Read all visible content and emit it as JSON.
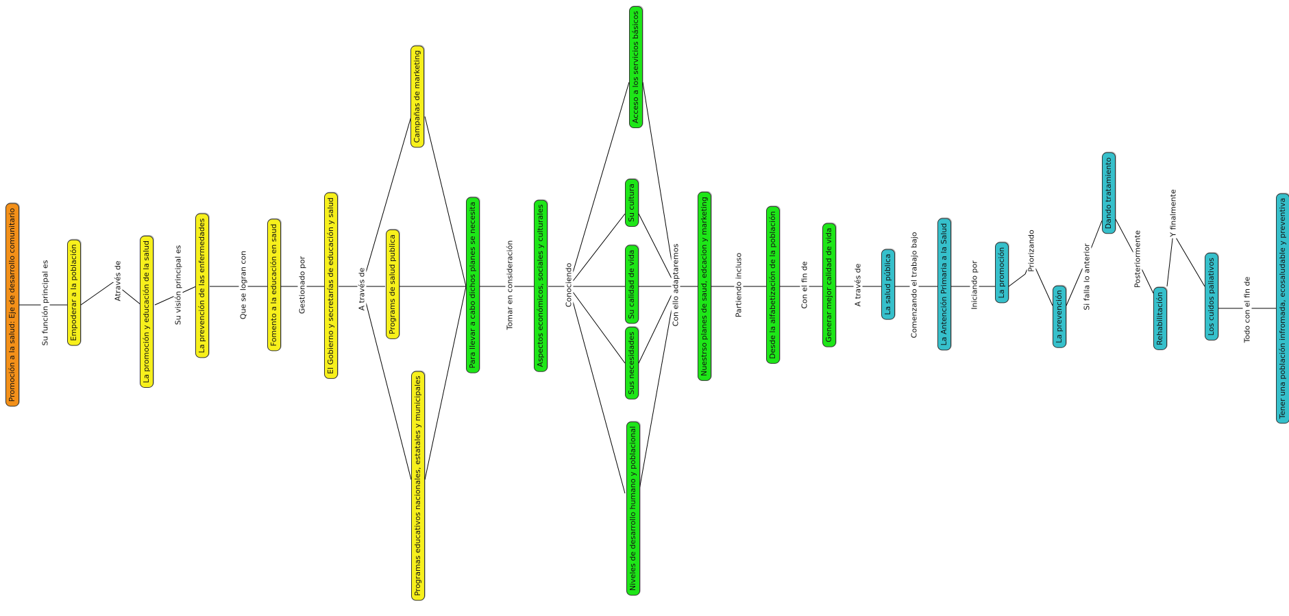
{
  "colors": {
    "orange": "#f39019",
    "yellow": "#f7f01c",
    "green": "#1ee618",
    "teal": "#36c0cb"
  },
  "nodes": {
    "root": "Promoción a la salud: Eje de desarrollo comunitario",
    "empoderar": "Empoderar a la población",
    "promocion_educacion": "La promoción y educación de la salud",
    "prevencion_enf": "La prevención de las enfermedades",
    "fomento": "Fomento a la educación en saud",
    "gobierno": "El Gobierno y secretarías de educación y salud",
    "campanas": "Campañas de marketing",
    "programas_salud": "Programs de salud publica",
    "programas_edu": "Programas educativos nacionales, estatales y municipales",
    "para_llevar": "Para llevar a cabo dichos planes se necesita",
    "aspectos": "Aspectos económicos, sociales y culturales",
    "acceso": "Acceso a los servicios básicos",
    "su_cultura": "Su cultura",
    "su_calidad": "Su calidad de vida",
    "sus_necesidades": "Sus necesidades",
    "niveles": "Niveles de desarrollo humano y poblacional",
    "nuestros_planes": "Nuestrso planes de saud, edcacion y marketing",
    "alfabetizacion": "Desde la alfabetización de la población",
    "generar": "Generar mejor calidad de vida",
    "salud_publica": "La salud pública",
    "atencion_primaria": "La Antención Primaria a la Salud",
    "la_promocion": "La promoción",
    "la_prevencion": "La prevención",
    "dando_tratamiento": "Dando tratamiento",
    "rehabilitacion": "Rehabilitación",
    "cuidados": "Los cuidos paliativos",
    "final": "Tener una población infromada, ecosaludable y preventiva"
  },
  "links": {
    "su_funcion": "Su función principal es",
    "atraves_de": "Através de",
    "su_vision": "Su visión principal es",
    "que_se_logran": "Que se logran con",
    "gestionado_por": "Gestionado por",
    "a_traves_de_1": "A través de",
    "tomar": "Tomar en consideración",
    "conociendo": "Conociendo",
    "con_ello": "Con ello adaptaremos",
    "partiendo": "Partiendo incluso",
    "con_el_fin": "Con el fin de",
    "a_traves_de_2": "A través de",
    "comenzando": "Comenzando el trabajo bajo",
    "iniciando": "Iniciando por",
    "priorizando": "Priorizando",
    "si_falla": "Si falla lo anterior",
    "posteriormente": "Posteriormente",
    "y_finalmente": "Y finalmente",
    "todo_con": "Todo con el fin de"
  }
}
